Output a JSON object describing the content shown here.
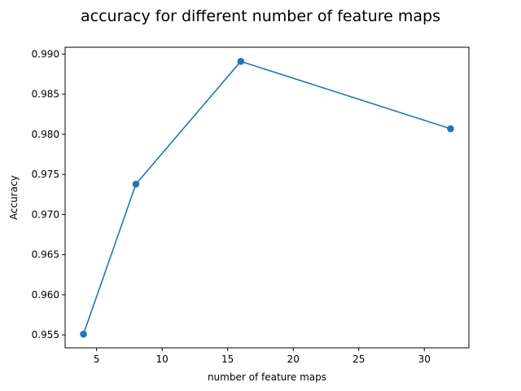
{
  "chart_data": {
    "type": "line",
    "title": "accuracy for different number of feature maps",
    "xlabel": "number of feature maps",
    "ylabel": "Accuracy",
    "xlim": [
      2.6,
      33.4
    ],
    "ylim": [
      0.95339,
      0.99086
    ],
    "x_ticks": [
      5,
      10,
      15,
      20,
      25,
      30
    ],
    "y_ticks": [
      0.955,
      0.96,
      0.965,
      0.97,
      0.975,
      0.98,
      0.985,
      0.99
    ],
    "x_tick_labels": [
      "5",
      "10",
      "15",
      "20",
      "25",
      "30"
    ],
    "y_tick_labels": [
      "0.955",
      "0.960",
      "0.965",
      "0.970",
      "0.975",
      "0.980",
      "0.985",
      "0.990"
    ],
    "grid": false,
    "series": [
      {
        "x": [
          4,
          8,
          16,
          32
        ],
        "y": [
          0.9551,
          0.9738,
          0.9891,
          0.9807
        ],
        "color": "#1f77b4",
        "marker": "circle"
      }
    ]
  }
}
